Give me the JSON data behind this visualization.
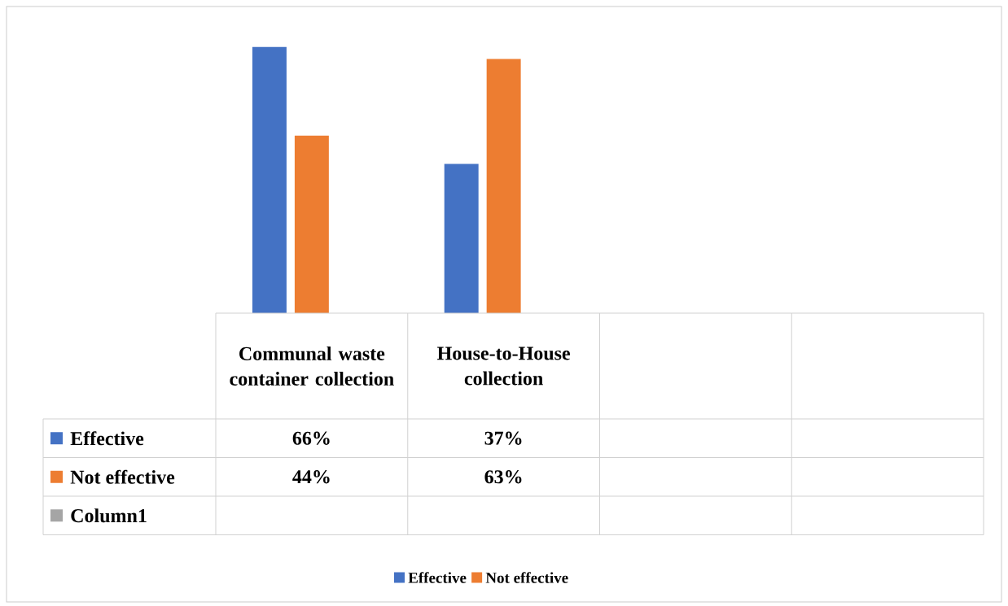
{
  "chart_data": {
    "type": "bar",
    "categories": [
      "Communal waste container collection",
      "House-to-House collection",
      null,
      null
    ],
    "series": [
      {
        "name": "Effective",
        "color": "#4472c4",
        "values": [
          66,
          37,
          null,
          null
        ],
        "value_labels": [
          "66%",
          "37%",
          null,
          null
        ]
      },
      {
        "name": "Not effective",
        "color": "#ed7d31",
        "values": [
          44,
          63,
          null,
          null
        ],
        "value_labels": [
          "44%",
          "63%",
          null,
          null
        ]
      },
      {
        "name": "Column1",
        "color": "#a5a5a5",
        "values": [
          null,
          null,
          null,
          null
        ],
        "value_labels": [
          null,
          null,
          null,
          null
        ]
      }
    ],
    "legend": "bottom"
  }
}
